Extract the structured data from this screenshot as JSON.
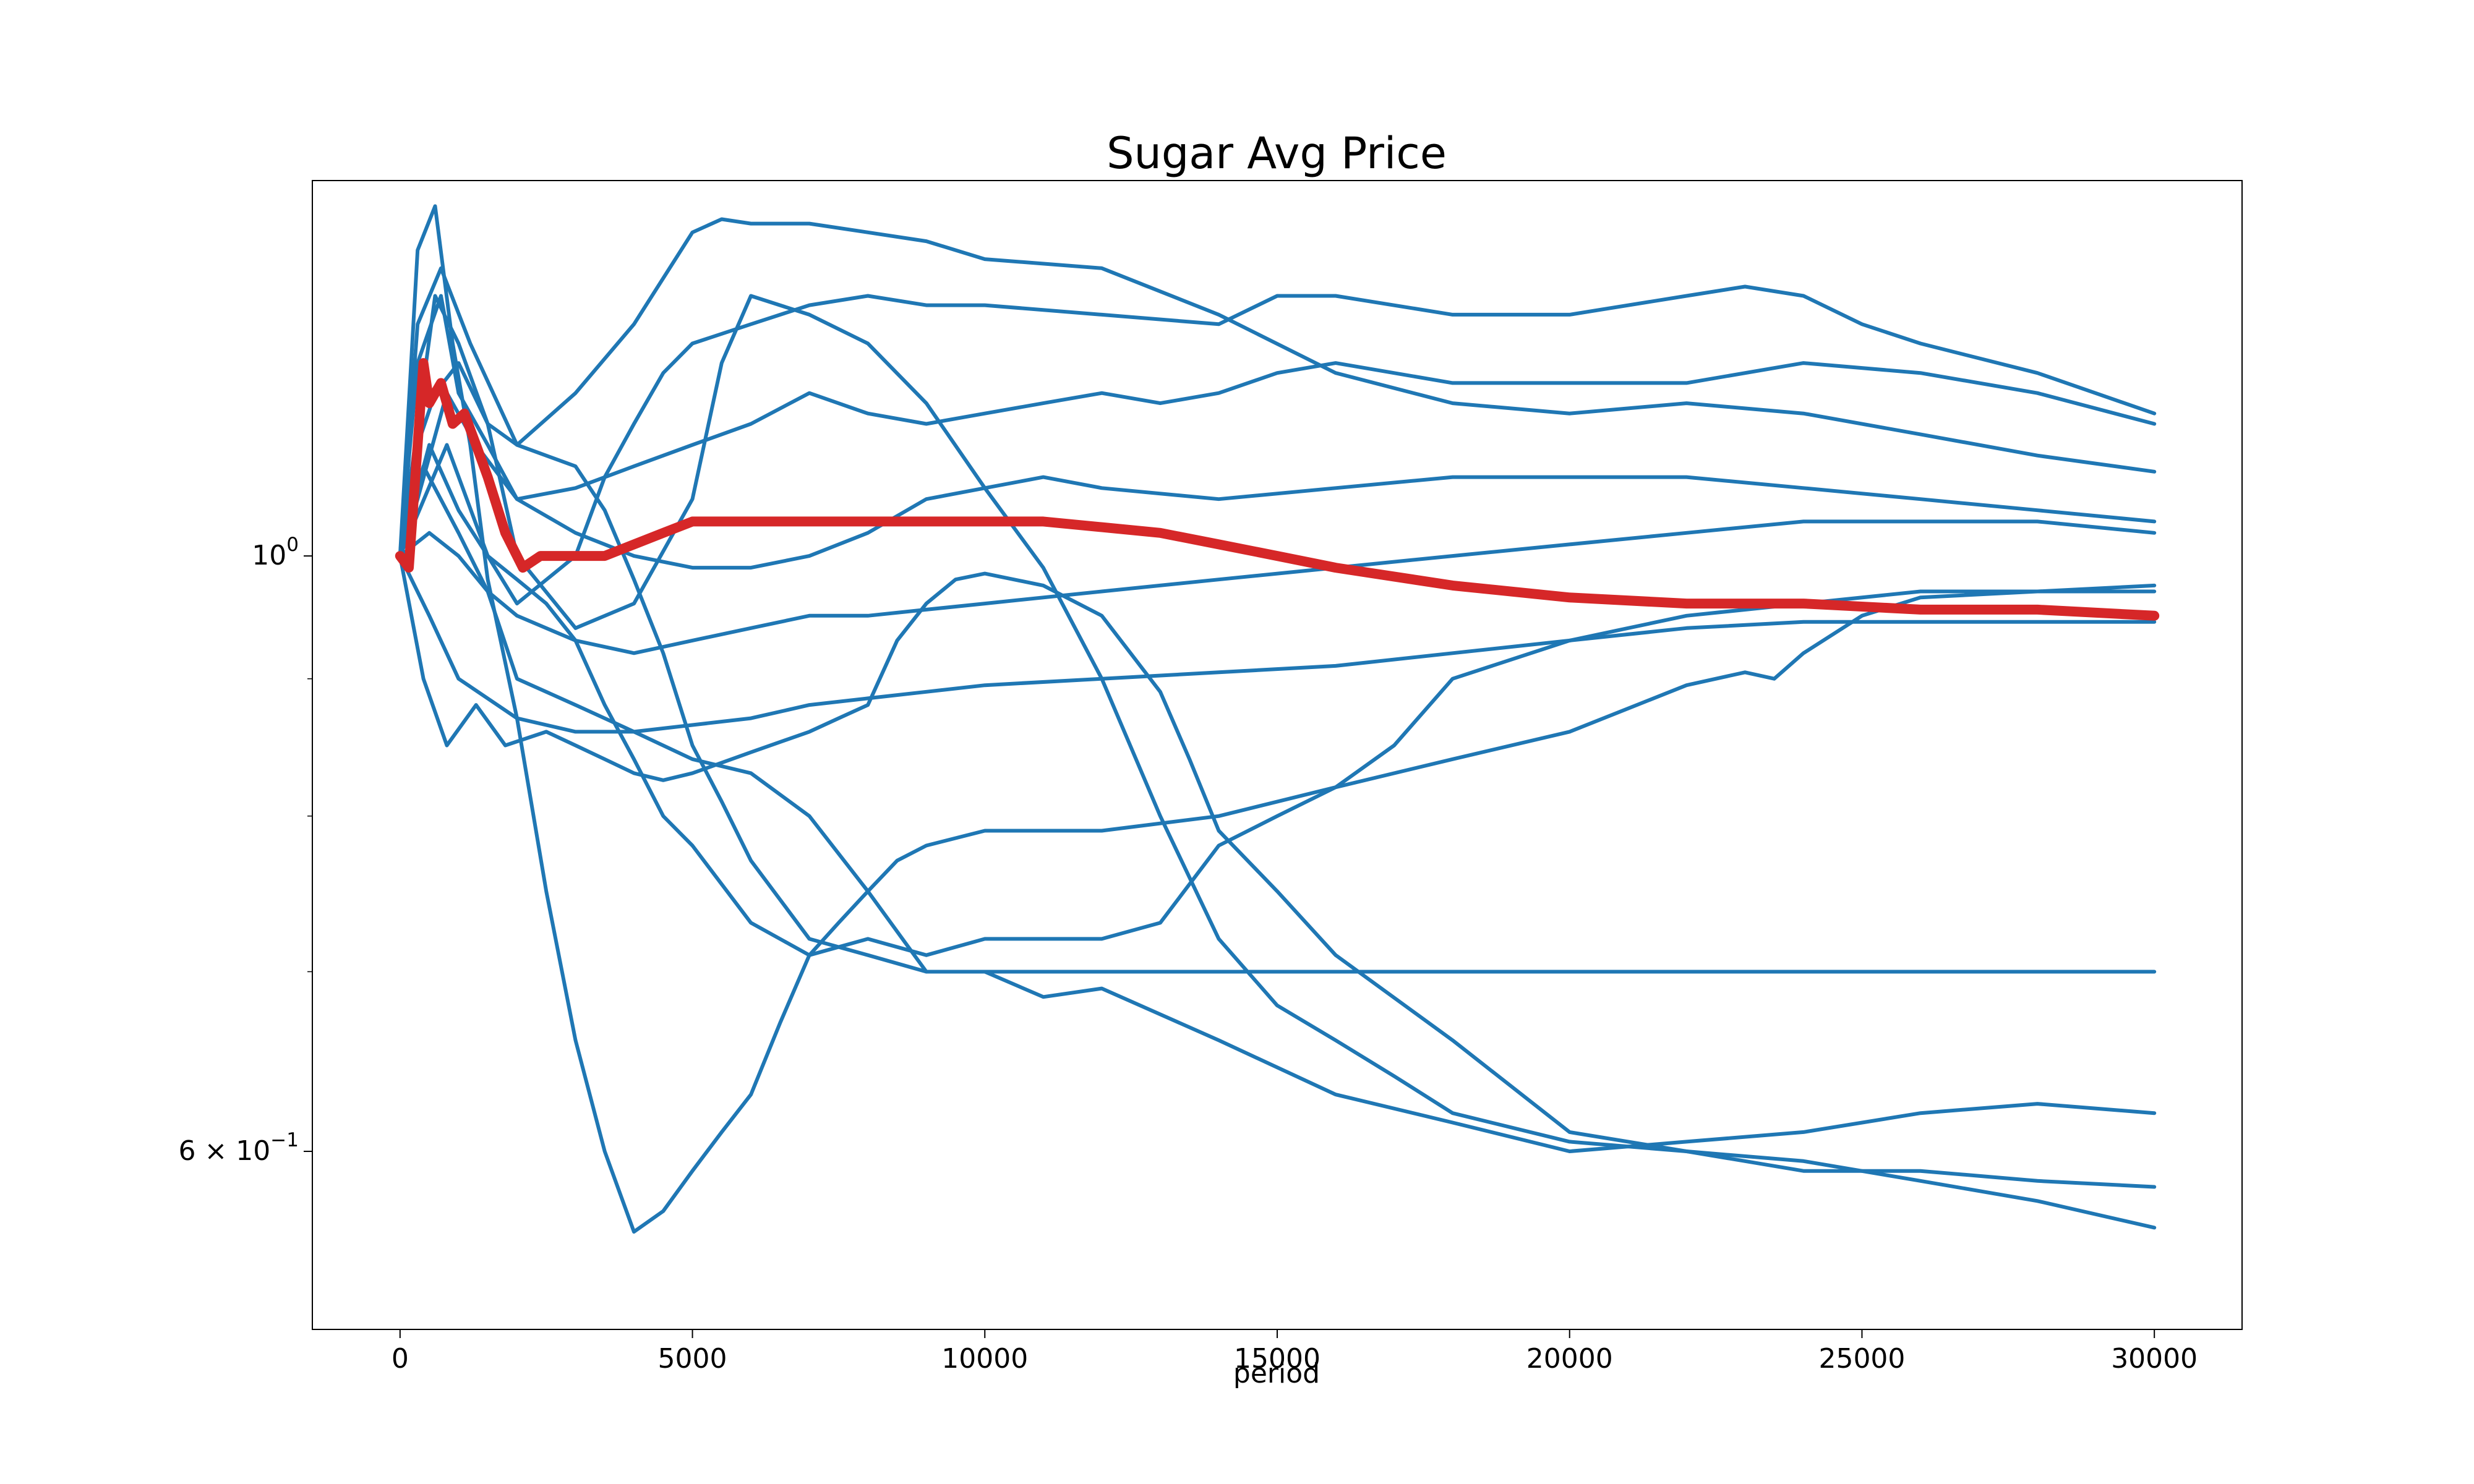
{
  "chart_data": {
    "type": "line",
    "title": "Sugar Avg Price",
    "xlabel": "period",
    "ylabel": "",
    "xlim": [
      -1500,
      31500
    ],
    "ylim": [
      0.515,
      1.38
    ],
    "yscale": "log",
    "grid": false,
    "x_ticks": [
      {
        "value": 0,
        "label": "0"
      },
      {
        "value": 5000,
        "label": "5000"
      },
      {
        "value": 10000,
        "label": "10000"
      },
      {
        "value": 15000,
        "label": "15000"
      },
      {
        "value": 20000,
        "label": "20000"
      },
      {
        "value": 25000,
        "label": "25000"
      },
      {
        "value": 30000,
        "label": "30000"
      }
    ],
    "y_ticks": [
      {
        "value": 1.0,
        "base": "10",
        "exp": "0",
        "prefix": ""
      },
      {
        "value": 0.6,
        "base": "10",
        "exp": "−1",
        "prefix": "6 × "
      }
    ],
    "y_minor_ticks": [
      0.7,
      0.8,
      0.9
    ],
    "colors": {
      "runs": "#1f77b4",
      "average": "#d62728"
    },
    "series": [
      {
        "color": "#1f77b4",
        "x": [
          0,
          300,
          700,
          1200,
          2000,
          3000,
          4000,
          5000,
          5500,
          6000,
          7000,
          8000,
          9000,
          10000,
          12000,
          14000,
          16000,
          18000,
          20000,
          22000,
          24000,
          26000,
          28000,
          30000
        ],
        "y": [
          1.0,
          1.22,
          1.28,
          1.2,
          1.1,
          1.15,
          1.22,
          1.32,
          1.335,
          1.33,
          1.33,
          1.32,
          1.31,
          1.29,
          1.28,
          1.23,
          1.17,
          1.14,
          1.13,
          1.14,
          1.13,
          1.11,
          1.09,
          1.075
        ]
      },
      {
        "color": "#1f77b4",
        "x": [
          0,
          300,
          600,
          1000,
          1500,
          2000,
          3000,
          4000,
          5000,
          5500,
          6000,
          7000,
          8000,
          9000,
          10000,
          11000,
          12000,
          13000,
          14000,
          15000,
          16000,
          17000,
          18000,
          20000,
          22000,
          24000,
          26000,
          28000,
          30000
        ],
        "y": [
          1.0,
          1.1,
          1.15,
          1.18,
          1.12,
          1.0,
          0.94,
          0.96,
          1.05,
          1.18,
          1.25,
          1.23,
          1.2,
          1.14,
          1.06,
          0.99,
          0.9,
          0.8,
          0.72,
          0.68,
          0.66,
          0.64,
          0.62,
          0.605,
          0.6,
          0.595,
          0.585,
          0.575,
          0.562
        ]
      },
      {
        "color": "#1f77b4",
        "x": [
          0,
          300,
          800,
          1300,
          2000,
          3000,
          4000,
          5000,
          6000,
          7000,
          8000,
          9000,
          10000,
          11000,
          12000,
          13000,
          14000,
          15000,
          16000,
          18000,
          20000,
          22000,
          24000,
          26000,
          28000,
          30000
        ],
        "y": [
          1.0,
          1.05,
          1.15,
          1.1,
          1.05,
          1.06,
          1.08,
          1.1,
          1.12,
          1.15,
          1.13,
          1.12,
          1.13,
          1.14,
          1.15,
          1.14,
          1.15,
          1.17,
          1.18,
          1.16,
          1.16,
          1.16,
          1.18,
          1.17,
          1.15,
          1.12
        ]
      },
      {
        "color": "#1f77b4",
        "x": [
          0,
          500,
          1000,
          1500,
          2000,
          3000,
          4000,
          5000,
          6000,
          7000,
          8000,
          9000,
          10000,
          12000,
          14000,
          16000,
          18000,
          20000,
          22000,
          24000,
          26000,
          28000,
          30000
        ],
        "y": [
          1.0,
          1.02,
          1.0,
          0.97,
          0.95,
          0.93,
          0.92,
          0.93,
          0.94,
          0.95,
          0.95,
          0.955,
          0.96,
          0.97,
          0.98,
          0.99,
          1.0,
          1.01,
          1.02,
          1.03,
          1.03,
          1.03,
          1.02
        ]
      },
      {
        "color": "#1f77b4",
        "x": [
          0,
          400,
          1000,
          1500,
          2000,
          3000,
          4000,
          5000,
          6000,
          7000,
          8000,
          9000,
          10000,
          11000,
          12000,
          14000,
          16000,
          18000,
          20000,
          22000,
          24000,
          26000,
          28000,
          30000
        ],
        "y": [
          1.0,
          1.08,
          1.02,
          0.97,
          0.9,
          0.88,
          0.86,
          0.84,
          0.83,
          0.8,
          0.75,
          0.7,
          0.7,
          0.685,
          0.69,
          0.66,
          0.63,
          0.615,
          0.6,
          0.605,
          0.61,
          0.62,
          0.625,
          0.62
        ]
      },
      {
        "color": "#1f77b4",
        "x": [
          0,
          300,
          600,
          900,
          1200,
          1500,
          2000,
          2500,
          3000,
          3500,
          4000,
          4500,
          5000,
          5500,
          6000,
          6500,
          7000,
          7500,
          8000,
          8500,
          9000,
          10000,
          11000,
          12000,
          14000,
          16000,
          18000,
          20000,
          22000,
          23000,
          23500,
          24000,
          25000,
          26000,
          28000,
          30000
        ],
        "y": [
          1.0,
          1.3,
          1.35,
          1.2,
          1.1,
          0.98,
          0.87,
          0.75,
          0.66,
          0.6,
          0.56,
          0.57,
          0.59,
          0.61,
          0.63,
          0.67,
          0.71,
          0.73,
          0.75,
          0.77,
          0.78,
          0.79,
          0.79,
          0.79,
          0.8,
          0.82,
          0.84,
          0.86,
          0.895,
          0.905,
          0.9,
          0.92,
          0.95,
          0.965,
          0.97,
          0.97
        ]
      },
      {
        "color": "#1f77b4",
        "x": [
          0,
          400,
          800,
          1300,
          1800,
          2500,
          3000,
          3500,
          4000,
          4500,
          5000,
          6000,
          7000,
          7500,
          8000,
          8500,
          9000,
          9500,
          10000,
          11000,
          12000,
          13000,
          13500,
          14000,
          15000,
          16000,
          18000,
          20000,
          22000,
          24000,
          26000,
          28000,
          30000
        ],
        "y": [
          1.0,
          0.9,
          0.85,
          0.88,
          0.85,
          0.86,
          0.85,
          0.84,
          0.83,
          0.825,
          0.83,
          0.845,
          0.86,
          0.87,
          0.88,
          0.93,
          0.96,
          0.98,
          0.985,
          0.975,
          0.95,
          0.89,
          0.84,
          0.79,
          0.75,
          0.71,
          0.66,
          0.61,
          0.6,
          0.59,
          0.59,
          0.585,
          0.582
        ]
      },
      {
        "color": "#1f77b4",
        "x": [
          0,
          500,
          1000,
          2000,
          3000,
          4000,
          5000,
          6000,
          7000,
          8000,
          9000,
          10000,
          12000,
          14000,
          16000,
          18000,
          20000,
          22000,
          24000,
          26000,
          28000,
          30000
        ],
        "y": [
          1.0,
          0.95,
          0.9,
          0.87,
          0.86,
          0.86,
          0.865,
          0.87,
          0.88,
          0.885,
          0.89,
          0.895,
          0.9,
          0.905,
          0.91,
          0.92,
          0.93,
          0.94,
          0.945,
          0.945,
          0.945,
          0.945
        ]
      },
      {
        "color": "#1f77b4",
        "x": [
          0,
          800,
          1500,
          2000,
          3000,
          3500,
          4000,
          4500,
          5000,
          6000,
          7000,
          8000,
          9000,
          10000,
          12000,
          14000,
          15000,
          16000,
          18000,
          20000,
          22000,
          23000,
          24000,
          25000,
          26000,
          28000,
          30000
        ],
        "y": [
          1.0,
          1.1,
          1.0,
          0.96,
          1.0,
          1.07,
          1.12,
          1.17,
          1.2,
          1.22,
          1.24,
          1.25,
          1.24,
          1.24,
          1.23,
          1.22,
          1.25,
          1.25,
          1.23,
          1.23,
          1.25,
          1.26,
          1.25,
          1.22,
          1.2,
          1.17,
          1.13
        ]
      },
      {
        "color": "#1f77b4",
        "x": [
          0,
          600,
          1000,
          1500,
          2000,
          3000,
          3500,
          4000,
          4500,
          5000,
          5500,
          6000,
          7000,
          8000,
          9000,
          10000,
          12000,
          14000,
          16000,
          18000,
          20000,
          22000,
          24000,
          26000,
          28000,
          30000
        ],
        "y": [
          1.0,
          1.25,
          1.2,
          1.12,
          1.1,
          1.08,
          1.04,
          0.98,
          0.92,
          0.85,
          0.81,
          0.77,
          0.72,
          0.71,
          0.7,
          0.7,
          0.7,
          0.7,
          0.7,
          0.7,
          0.7,
          0.7,
          0.7,
          0.7,
          0.7,
          0.7
        ]
      },
      {
        "color": "#1f77b4",
        "x": [
          0,
          500,
          1000,
          1500,
          2000,
          2500,
          3000,
          3500,
          4000,
          4500,
          5000,
          6000,
          7000,
          8000,
          9000,
          10000,
          12000,
          13000,
          14000,
          15000,
          16000,
          17000,
          18000,
          20000,
          22000,
          24000,
          26000,
          28000,
          30000
        ],
        "y": [
          1.0,
          1.1,
          1.04,
          1.0,
          0.98,
          0.96,
          0.93,
          0.88,
          0.84,
          0.8,
          0.78,
          0.73,
          0.71,
          0.72,
          0.71,
          0.72,
          0.72,
          0.73,
          0.78,
          0.8,
          0.82,
          0.85,
          0.9,
          0.93,
          0.95,
          0.96,
          0.97,
          0.97,
          0.975
        ]
      },
      {
        "color": "#1f77b4",
        "x": [
          0,
          300,
          700,
          1000,
          1500,
          2000,
          3000,
          4000,
          5000,
          6000,
          7000,
          8000,
          9000,
          10000,
          11000,
          12000,
          14000,
          16000,
          18000,
          20000,
          22000,
          24000,
          26000,
          28000,
          30000
        ],
        "y": [
          1.0,
          1.18,
          1.25,
          1.15,
          1.1,
          1.05,
          1.02,
          1.0,
          0.99,
          0.99,
          1.0,
          1.02,
          1.05,
          1.06,
          1.07,
          1.06,
          1.05,
          1.06,
          1.07,
          1.07,
          1.07,
          1.06,
          1.05,
          1.04,
          1.03
        ]
      }
    ],
    "average": {
      "color": "#d62728",
      "x": [
        0,
        150,
        300,
        400,
        500,
        700,
        900,
        1100,
        1300,
        1500,
        1800,
        2100,
        2400,
        3000,
        3500,
        4000,
        4500,
        5000,
        5500,
        6000,
        6500,
        7000,
        8000,
        9000,
        10000,
        11000,
        12000,
        13000,
        14000,
        15000,
        16000,
        18000,
        20000,
        22000,
        24000,
        26000,
        28000,
        30000
      ],
      "y": [
        1.0,
        0.99,
        1.1,
        1.18,
        1.14,
        1.16,
        1.12,
        1.13,
        1.1,
        1.07,
        1.02,
        0.99,
        1.0,
        1.0,
        1.0,
        1.01,
        1.02,
        1.03,
        1.03,
        1.03,
        1.03,
        1.03,
        1.03,
        1.03,
        1.03,
        1.03,
        1.025,
        1.02,
        1.01,
        1.0,
        0.99,
        0.975,
        0.965,
        0.96,
        0.96,
        0.955,
        0.955,
        0.95
      ]
    }
  }
}
